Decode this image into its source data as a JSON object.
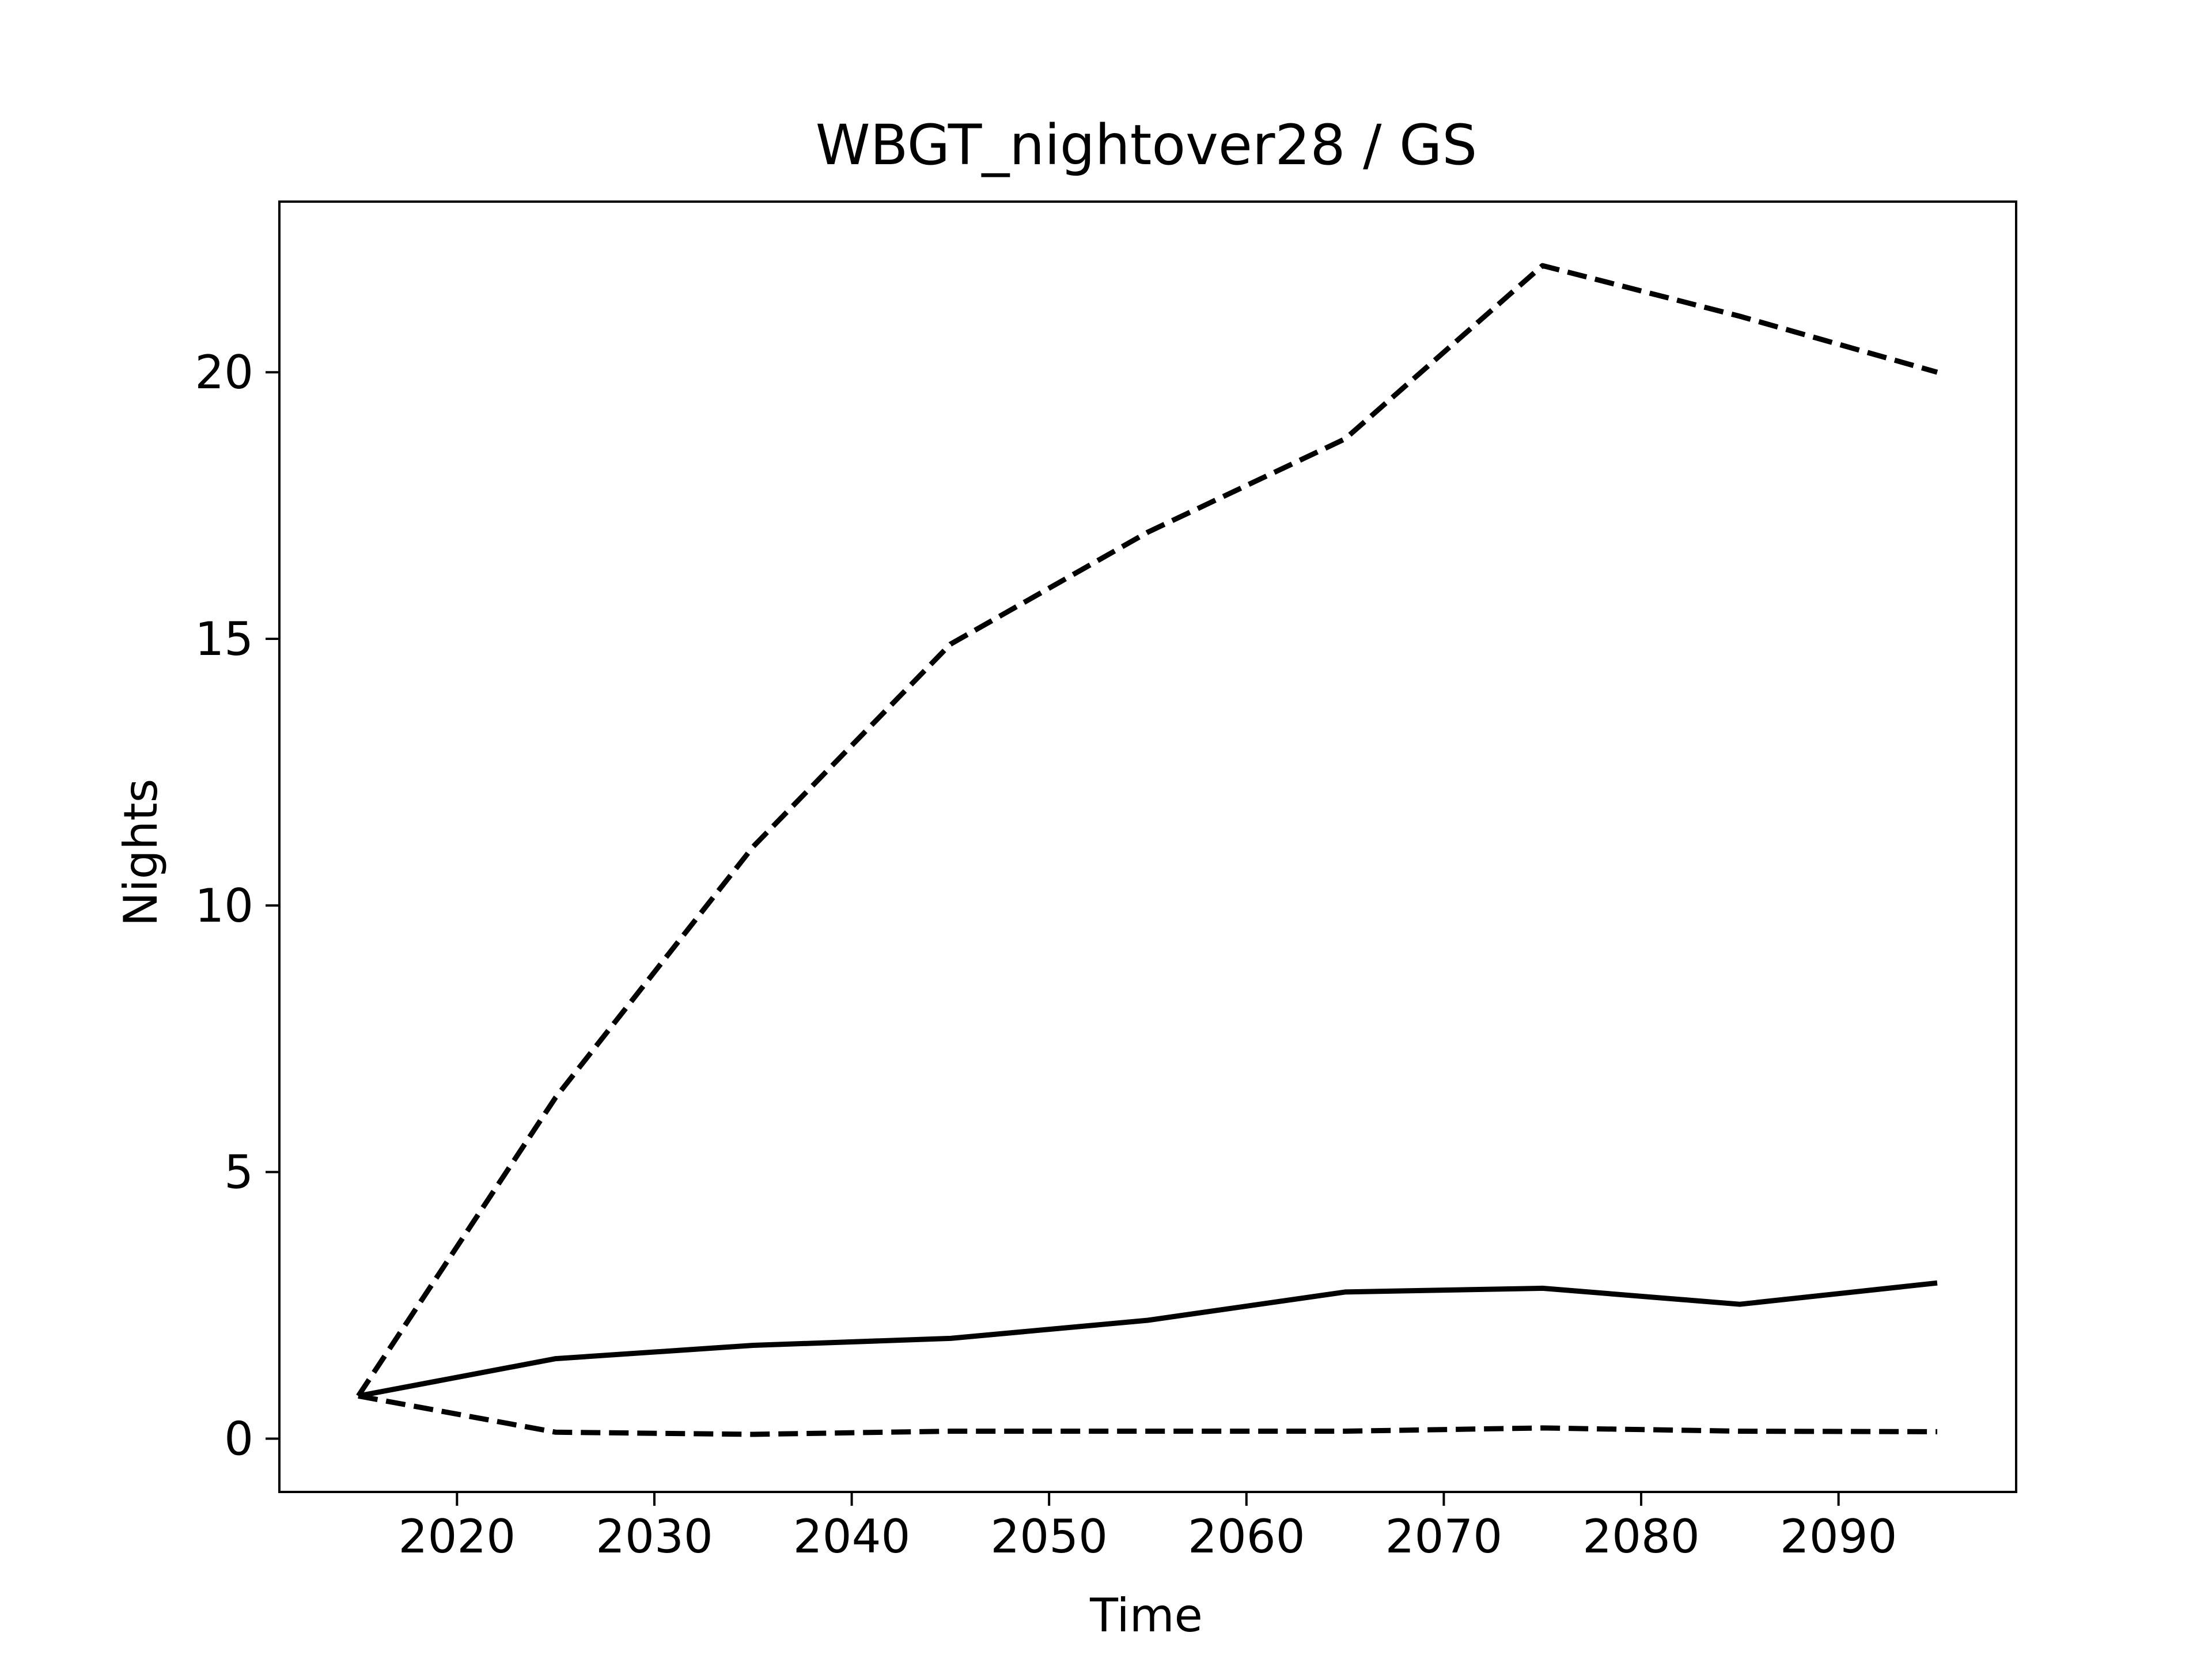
{
  "chart_data": {
    "type": "line",
    "title": "WBGT_nightover28 / GS",
    "xlabel": "Time",
    "ylabel": "Nights",
    "xlim": [
      2011,
      2099
    ],
    "ylim": [
      -1,
      23.2
    ],
    "x_ticks": [
      2020,
      2030,
      2040,
      2050,
      2060,
      2070,
      2080,
      2090
    ],
    "y_ticks": [
      0,
      5,
      10,
      15,
      20
    ],
    "grid": false,
    "line_color": "#000000",
    "x": [
      2015,
      2025,
      2035,
      2045,
      2055,
      2065,
      2075,
      2085,
      2095
    ],
    "series": [
      {
        "style": "solid",
        "values": [
          0.8,
          1.5,
          1.75,
          1.88,
          2.22,
          2.75,
          2.82,
          2.52,
          2.92
        ]
      },
      {
        "style": "dashed",
        "values": [
          0.8,
          6.4,
          11.1,
          14.9,
          17.0,
          18.75,
          22.0,
          21.05,
          20.0
        ]
      },
      {
        "style": "dashed",
        "values": [
          0.8,
          0.12,
          0.08,
          0.14,
          0.14,
          0.14,
          0.2,
          0.14,
          0.13
        ]
      }
    ]
  }
}
